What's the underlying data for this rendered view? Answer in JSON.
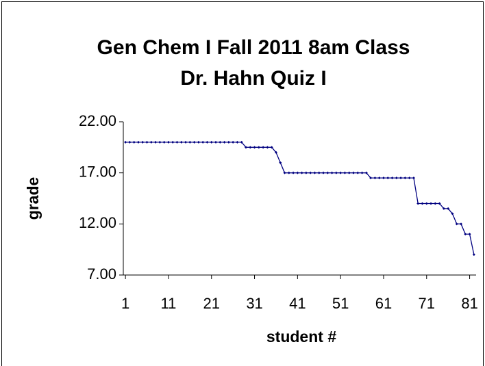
{
  "chart_data": {
    "type": "line",
    "title": [
      "Gen Chem I Fall 2011 8am Class",
      "Dr. Hahn Quiz I"
    ],
    "x_label": "student #",
    "y_label": "grade",
    "x": [
      1,
      2,
      3,
      4,
      5,
      6,
      7,
      8,
      9,
      10,
      11,
      12,
      13,
      14,
      15,
      16,
      17,
      18,
      19,
      20,
      21,
      22,
      23,
      24,
      25,
      26,
      27,
      28,
      29,
      30,
      31,
      32,
      33,
      34,
      35,
      36,
      37,
      38,
      39,
      40,
      41,
      42,
      43,
      44,
      45,
      46,
      47,
      48,
      49,
      50,
      51,
      52,
      53,
      54,
      55,
      56,
      57,
      58,
      59,
      60,
      61,
      62,
      63,
      64,
      65,
      66,
      67,
      68,
      69,
      70,
      71,
      72,
      73,
      74,
      75,
      76,
      77,
      78,
      79,
      80,
      81,
      82
    ],
    "values": [
      20,
      20,
      20,
      20,
      20,
      20,
      20,
      20,
      20,
      20,
      20,
      20,
      20,
      20,
      20,
      20,
      20,
      20,
      20,
      20,
      20,
      20,
      20,
      20,
      20,
      20,
      20,
      20,
      19.5,
      19.5,
      19.5,
      19.5,
      19.5,
      19.5,
      19.5,
      19,
      18,
      17,
      17,
      17,
      17,
      17,
      17,
      17,
      17,
      17,
      17,
      17,
      17,
      17,
      17,
      17,
      17,
      17,
      17,
      17,
      17,
      16.5,
      16.5,
      16.5,
      16.5,
      16.5,
      16.5,
      16.5,
      16.5,
      16.5,
      16.5,
      16.5,
      14,
      14,
      14,
      14,
      14,
      14,
      13.5,
      13.5,
      13,
      12,
      12,
      11,
      11,
      9
    ],
    "color": "#000080",
    "xlim": [
      0.5,
      82.5
    ],
    "xticks": [
      1,
      11,
      21,
      31,
      41,
      51,
      61,
      71,
      81
    ],
    "ylim": [
      7,
      22
    ],
    "yticks": [
      {
        "value": 7,
        "label": "7.00"
      },
      {
        "value": 12,
        "label": "12.00"
      },
      {
        "value": 17,
        "label": "17.00"
      },
      {
        "value": 22,
        "label": "22.00"
      }
    ],
    "grid": false
  }
}
